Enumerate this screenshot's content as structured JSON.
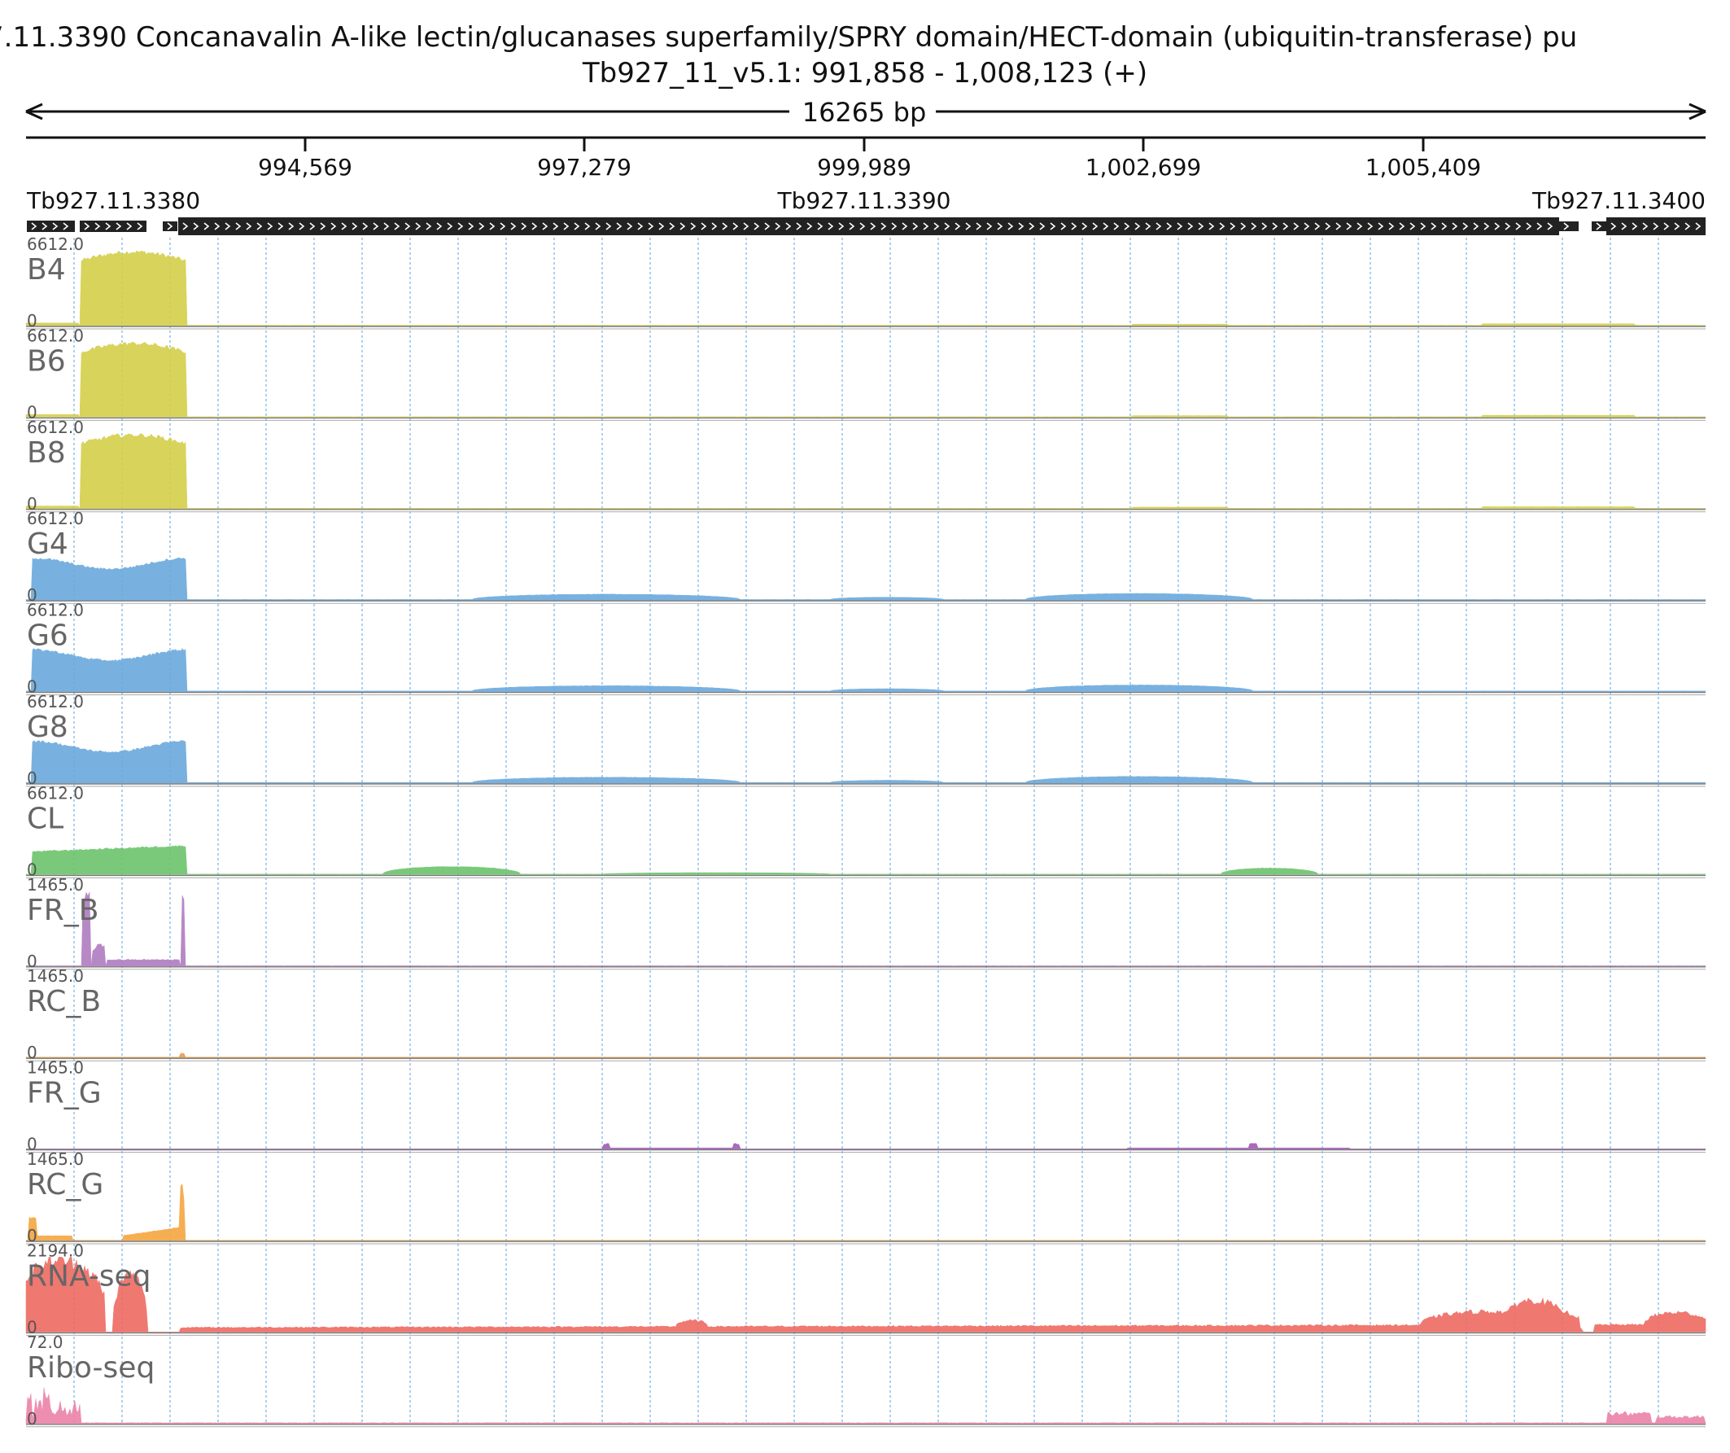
{
  "header": {
    "title": "7.11.3390  Concanavalin A-like lectin/glucanases superfamily/SPRY domain/HECT-domain (ubiquitin-transferase)  pu",
    "coords": "Tb927_11_v5.1: 991,858 - 1,008,123 (+)",
    "span_label": "16265 bp"
  },
  "ruler": {
    "ticks": [
      "994,569",
      "997,279",
      "999,989",
      "1,002,699",
      "1,005,409"
    ]
  },
  "genes": [
    {
      "name": "Tb927.11.3380",
      "label_align": "left"
    },
    {
      "name": "Tb927.11.3390",
      "label_align": "center"
    },
    {
      "name": "Tb927.11.3400",
      "label_align": "right"
    }
  ],
  "tracks": [
    {
      "name": "B4",
      "max": "6612.0",
      "min": "0",
      "color": "#d4cf4a"
    },
    {
      "name": "B6",
      "max": "6612.0",
      "min": "0",
      "color": "#d4cf4a"
    },
    {
      "name": "B8",
      "max": "6612.0",
      "min": "0",
      "color": "#d4cf4a"
    },
    {
      "name": "G4",
      "max": "6612.0",
      "min": "0",
      "color": "#6aa9dc"
    },
    {
      "name": "G6",
      "max": "6612.0",
      "min": "0",
      "color": "#6aa9dc"
    },
    {
      "name": "G8",
      "max": "6612.0",
      "min": "0",
      "color": "#6aa9dc"
    },
    {
      "name": "CL",
      "max": "6612.0",
      "min": "0",
      "color": "#6cc46c"
    },
    {
      "name": "FR_B",
      "max": "1465.0",
      "min": "0",
      "color": "#b07cc0"
    },
    {
      "name": "RC_B",
      "max": "1465.0",
      "min": "0",
      "color": "#e0a050"
    },
    {
      "name": "FR_G",
      "max": "1465.0",
      "min": "0",
      "color": "#a05ab5"
    },
    {
      "name": "RC_G",
      "max": "1465.0",
      "min": "0",
      "color": "#f4a640"
    },
    {
      "name": "RNA-seq",
      "max": "2194.0",
      "min": "0",
      "color": "#ee6a62"
    },
    {
      "name": "Ribo-seq",
      "max": "72.0",
      "min": "0",
      "color": "#ec82a8"
    }
  ]
}
